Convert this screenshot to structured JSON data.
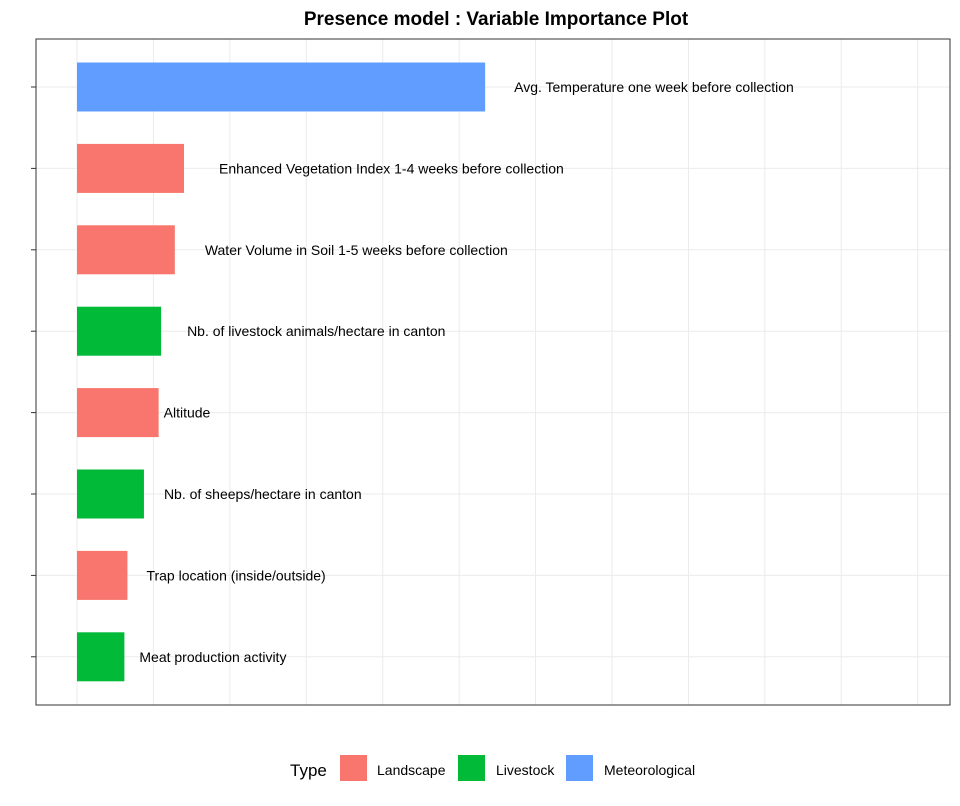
{
  "chart_data": {
    "type": "bar",
    "orientation": "horizontal",
    "title": "Presence model : Variable Importance Plot",
    "xlabel": "",
    "ylabel": "",
    "xlim": [
      0,
      0.28
    ],
    "grid": true,
    "legend_position": "bottom",
    "legend_title": "Type",
    "types": [
      {
        "name": "Landscape",
        "color": "#F8766D"
      },
      {
        "name": "Livestock",
        "color": "#00BA38"
      },
      {
        "name": "Meteorological",
        "color": "#619CFF"
      }
    ],
    "bars": [
      {
        "label": "Avg. Temperature one week before collection",
        "value": 0.1335,
        "type": "Meteorological"
      },
      {
        "label": "Enhanced Vegetation Index 1-4 weeks before collection",
        "value": 0.035,
        "type": "Landscape"
      },
      {
        "label": "Water Volume in Soil 1-5 weeks before collection",
        "value": 0.032,
        "type": "Landscape"
      },
      {
        "label": "Nb. of livestock animals/hectare in canton",
        "value": 0.0275,
        "type": "Livestock"
      },
      {
        "label": "Altitude",
        "value": 0.0267,
        "type": "Landscape"
      },
      {
        "label": "Nb. of sheeps/hectare in canton",
        "value": 0.0219,
        "type": "Livestock"
      },
      {
        "label": "Trap location (inside/outside)",
        "value": 0.0165,
        "type": "Landscape"
      },
      {
        "label": "Meat production activity",
        "value": 0.0155,
        "type": "Livestock"
      }
    ]
  }
}
